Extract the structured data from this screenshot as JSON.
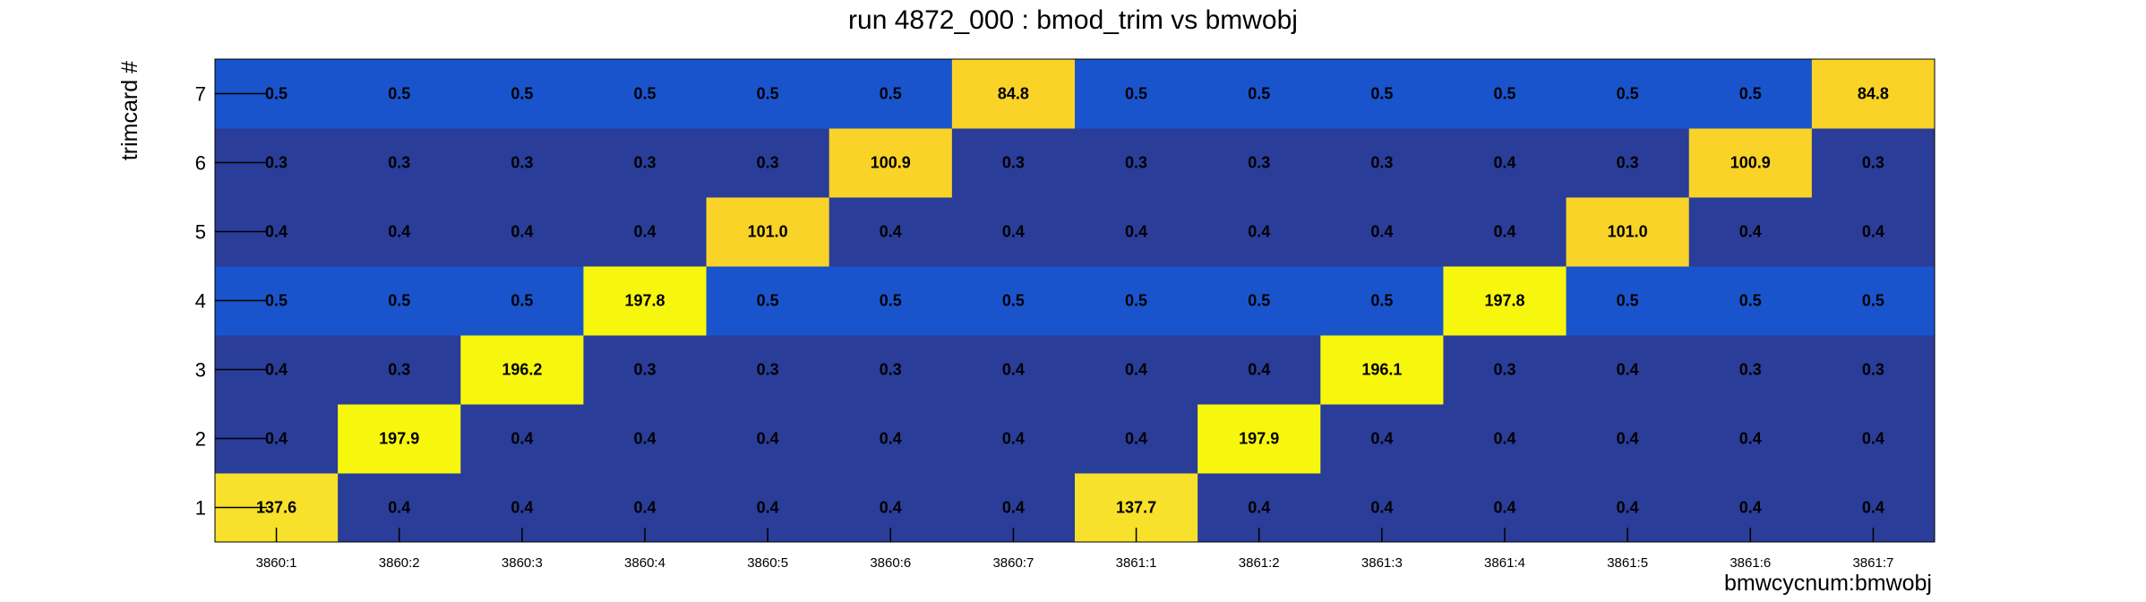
{
  "chart_data": {
    "type": "heatmap",
    "title": "run 4872_000 : bmod_trim vs bmwobj",
    "xlabel": "bmwcycnum:bmwobj",
    "ylabel": "trimcard #",
    "x_categories": [
      "3860:1",
      "3860:2",
      "3860:3",
      "3860:4",
      "3860:5",
      "3860:6",
      "3860:7",
      "3861:1",
      "3861:2",
      "3861:3",
      "3861:4",
      "3861:5",
      "3861:6",
      "3861:7"
    ],
    "y_categories": [
      "1",
      "2",
      "3",
      "4",
      "5",
      "6",
      "7"
    ],
    "z": [
      [
        "137.6",
        "0.4",
        "0.4",
        "0.4",
        "0.4",
        "0.4",
        "0.4",
        "137.7",
        "0.4",
        "0.4",
        "0.4",
        "0.4",
        "0.4",
        "0.4"
      ],
      [
        "0.4",
        "197.9",
        "0.4",
        "0.4",
        "0.4",
        "0.4",
        "0.4",
        "0.4",
        "197.9",
        "0.4",
        "0.4",
        "0.4",
        "0.4",
        "0.4"
      ],
      [
        "0.4",
        "0.3",
        "196.2",
        "0.3",
        "0.3",
        "0.3",
        "0.4",
        "0.4",
        "0.4",
        "196.1",
        "0.3",
        "0.4",
        "0.3",
        "0.3"
      ],
      [
        "0.5",
        "0.5",
        "0.5",
        "197.8",
        "0.5",
        "0.5",
        "0.5",
        "0.5",
        "0.5",
        "0.5",
        "197.8",
        "0.5",
        "0.5",
        "0.5"
      ],
      [
        "0.4",
        "0.4",
        "0.4",
        "0.4",
        "101.0",
        "0.4",
        "0.4",
        "0.4",
        "0.4",
        "0.4",
        "0.4",
        "101.0",
        "0.4",
        "0.4"
      ],
      [
        "0.3",
        "0.3",
        "0.3",
        "0.3",
        "0.3",
        "100.9",
        "0.3",
        "0.3",
        "0.3",
        "0.3",
        "0.4",
        "0.3",
        "100.9",
        "0.3"
      ],
      [
        "0.5",
        "0.5",
        "0.5",
        "0.5",
        "0.5",
        "0.5",
        "84.8",
        "0.5",
        "0.5",
        "0.5",
        "0.5",
        "0.5",
        "0.5",
        "84.8"
      ]
    ],
    "colors": {
      "low": "#2a3d99",
      "mid": "#1a54cc",
      "high_mid": "#f9d327",
      "high_low": "#f7e12a",
      "high": "#f7f70e"
    },
    "grid": false,
    "legend": "none"
  }
}
